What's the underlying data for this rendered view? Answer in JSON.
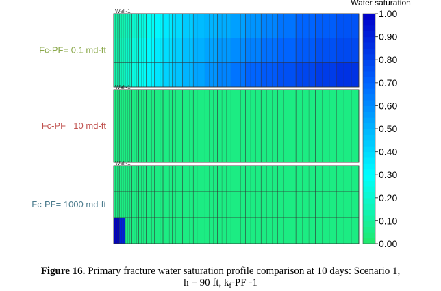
{
  "colorbar": {
    "title": "Water saturation",
    "lim": [
      0,
      1
    ],
    "ticks": [
      {
        "value": 1,
        "label": "1.00"
      },
      {
        "value": 0.9,
        "label": "0.90"
      },
      {
        "value": 0.8,
        "label": "0.80"
      },
      {
        "value": 0.7,
        "label": "0.70"
      },
      {
        "value": 0.6,
        "label": "0.60"
      },
      {
        "value": 0.5,
        "label": "0.50"
      },
      {
        "value": 0.4,
        "label": "0.40"
      },
      {
        "value": 0.3,
        "label": "0.30"
      },
      {
        "value": 0.2,
        "label": "0.20"
      },
      {
        "value": 0.1,
        "label": "0.10"
      },
      {
        "value": 0,
        "label": "0.00"
      }
    ]
  },
  "panels": [
    {
      "label": "Fc-PF= 0.1 md-ft",
      "well": "Well-1",
      "cells": [
        [
          0.12,
          0.14,
          0.17,
          0.2,
          0.24,
          0.28,
          0.32,
          0.36,
          0.4,
          0.44,
          0.48,
          0.5,
          0.52,
          0.55,
          0.58,
          0.62,
          0.66,
          0.7,
          0.72,
          0.75
        ],
        [
          0.13,
          0.16,
          0.19,
          0.23,
          0.27,
          0.31,
          0.35,
          0.39,
          0.43,
          0.47,
          0.51,
          0.54,
          0.57,
          0.6,
          0.63,
          0.67,
          0.7,
          0.73,
          0.76,
          0.78
        ],
        [
          0.13,
          0.16,
          0.2,
          0.24,
          0.28,
          0.33,
          0.37,
          0.42,
          0.46,
          0.5,
          0.54,
          0.58,
          0.62,
          0.66,
          0.7,
          0.73,
          0.76,
          0.79,
          0.82,
          0.85
        ]
      ]
    },
    {
      "label": "Fc-PF= 10 md-ft",
      "well": "Well-1",
      "cells": [
        [
          0.05,
          0.05,
          0.05,
          0.05,
          0.05,
          0.05,
          0.05,
          0.05,
          0.05,
          0.05,
          0.05,
          0.05,
          0.05,
          0.05,
          0.05,
          0.05,
          0.05,
          0.05,
          0.05,
          0.05
        ],
        [
          0.05,
          0.05,
          0.05,
          0.05,
          0.05,
          0.05,
          0.05,
          0.05,
          0.05,
          0.05,
          0.05,
          0.05,
          0.05,
          0.05,
          0.05,
          0.05,
          0.05,
          0.05,
          0.05,
          0.05
        ],
        [
          0.05,
          0.05,
          0.05,
          0.05,
          0.05,
          0.05,
          0.05,
          0.05,
          0.05,
          0.05,
          0.05,
          0.05,
          0.05,
          0.05,
          0.05,
          0.05,
          0.05,
          0.05,
          0.05,
          0.05
        ]
      ]
    },
    {
      "label": "Fc-PF= 1000 md-ft",
      "well": "Well-1",
      "cells": [
        [
          0.05,
          0.05,
          0.05,
          0.05,
          0.05,
          0.05,
          0.05,
          0.05,
          0.05,
          0.05,
          0.05,
          0.05,
          0.05,
          0.05,
          0.05,
          0.05,
          0.05,
          0.05,
          0.05,
          0.05
        ],
        [
          0.05,
          0.05,
          0.05,
          0.05,
          0.05,
          0.05,
          0.05,
          0.05,
          0.05,
          0.05,
          0.05,
          0.05,
          0.05,
          0.05,
          0.05,
          0.05,
          0.05,
          0.05,
          0.05,
          0.05
        ],
        [
          1.0,
          0.9,
          0.05,
          0.05,
          0.05,
          0.05,
          0.05,
          0.05,
          0.05,
          0.05,
          0.05,
          0.05,
          0.05,
          0.05,
          0.05,
          0.05,
          0.05,
          0.05,
          0.05,
          0.05
        ]
      ]
    }
  ],
  "caption": {
    "bold": "Figure 16.",
    "line1": "Primary fracture water saturation profile comparison at 10 days: Scenario 1,",
    "line2a": "h = 90 ft, k",
    "sub": "f",
    "line2b": "-PF -1"
  }
}
